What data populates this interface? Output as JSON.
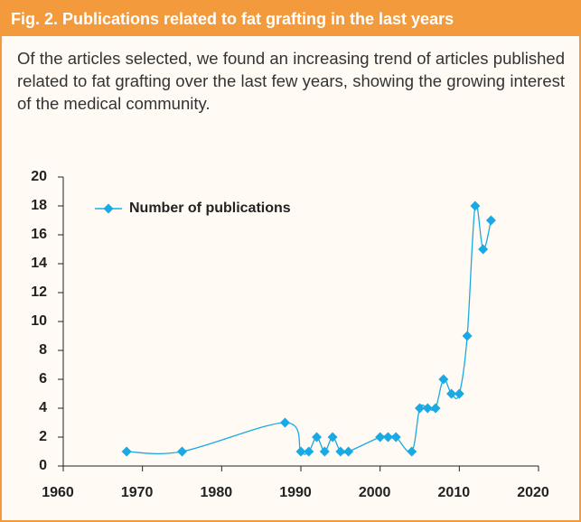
{
  "header": {
    "title": "Fig. 2. Publications related to fat grafting in the last years"
  },
  "caption": "Of the articles selected, we found an increasing trend of articles published related to fat grafting over the last few years, showing the growing interest of the medical community.",
  "chart_data": {
    "type": "line",
    "x": [
      1968,
      1975,
      1988,
      1990,
      1991,
      1992,
      1993,
      1994,
      1995,
      1996,
      2000,
      2001,
      2002,
      2004,
      2005,
      2006,
      2007,
      2008,
      2009,
      2010,
      2011,
      2012,
      2013,
      2014
    ],
    "series": [
      {
        "name": "Number of publications",
        "color": "#1aa9e3",
        "values": [
          1,
          1,
          3,
          1,
          1,
          2,
          1,
          2,
          1,
          1,
          2,
          2,
          2,
          1,
          4,
          4,
          4,
          6,
          5,
          5,
          9,
          18,
          15,
          17
        ]
      }
    ],
    "xlim": [
      1960,
      2020
    ],
    "xticks": [
      1960,
      1970,
      1980,
      1990,
      2000,
      2010,
      2020
    ],
    "ylim": [
      0,
      20
    ],
    "yticks": [
      0,
      2,
      4,
      6,
      8,
      10,
      12,
      14,
      16,
      18,
      20
    ],
    "legend": "upper left",
    "smooth": true
  }
}
